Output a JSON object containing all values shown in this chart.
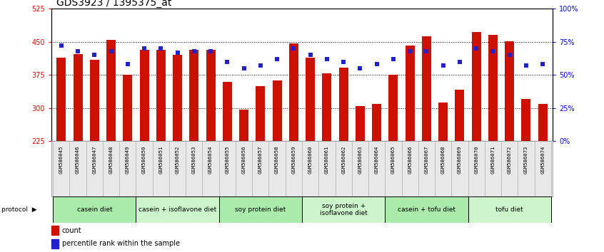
{
  "title": "GDS3923 / 1395375_at",
  "samples": [
    "GSM586045",
    "GSM586046",
    "GSM586047",
    "GSM586048",
    "GSM586049",
    "GSM586050",
    "GSM586051",
    "GSM586052",
    "GSM586053",
    "GSM586054",
    "GSM586055",
    "GSM586056",
    "GSM586057",
    "GSM586058",
    "GSM586059",
    "GSM586060",
    "GSM586061",
    "GSM586062",
    "GSM586063",
    "GSM586064",
    "GSM586065",
    "GSM586066",
    "GSM586067",
    "GSM586068",
    "GSM586069",
    "GSM586070",
    "GSM586071",
    "GSM586072",
    "GSM586073",
    "GSM586074"
  ],
  "counts": [
    415,
    422,
    410,
    455,
    375,
    432,
    432,
    421,
    432,
    432,
    360,
    296,
    350,
    362,
    447,
    415,
    378,
    392,
    305,
    310,
    375,
    442,
    462,
    312,
    342,
    472,
    466,
    452,
    320,
    310
  ],
  "percentile_ranks": [
    72,
    68,
    65,
    68,
    58,
    70,
    70,
    67,
    68,
    68,
    60,
    55,
    57,
    62,
    70,
    65,
    62,
    60,
    55,
    58,
    62,
    68,
    68,
    57,
    60,
    70,
    68,
    65,
    57,
    58
  ],
  "protocols": [
    {
      "label": "casein diet",
      "start": 0,
      "end": 5,
      "color": "#aaeaaa"
    },
    {
      "label": "casein + isoflavone diet",
      "start": 5,
      "end": 10,
      "color": "#ccf5cc"
    },
    {
      "label": "soy protein diet",
      "start": 10,
      "end": 15,
      "color": "#aaeaaa"
    },
    {
      "label": "soy protein +\nisoflavone diet",
      "start": 15,
      "end": 20,
      "color": "#ccf5cc"
    },
    {
      "label": "casein + tofu diet",
      "start": 20,
      "end": 25,
      "color": "#aaeaaa"
    },
    {
      "label": "tofu diet",
      "start": 25,
      "end": 30,
      "color": "#ccf5cc"
    }
  ],
  "ylim_left": [
    225,
    525
  ],
  "ylim_right": [
    0,
    100
  ],
  "yticks_left": [
    225,
    300,
    375,
    450,
    525
  ],
  "yticks_right": [
    0,
    25,
    50,
    75,
    100
  ],
  "bar_color": "#cc1100",
  "dot_color": "#2222cc",
  "background_color": "#ffffff",
  "title_fontsize": 10,
  "tick_fontsize": 7,
  "label_fontsize": 7
}
